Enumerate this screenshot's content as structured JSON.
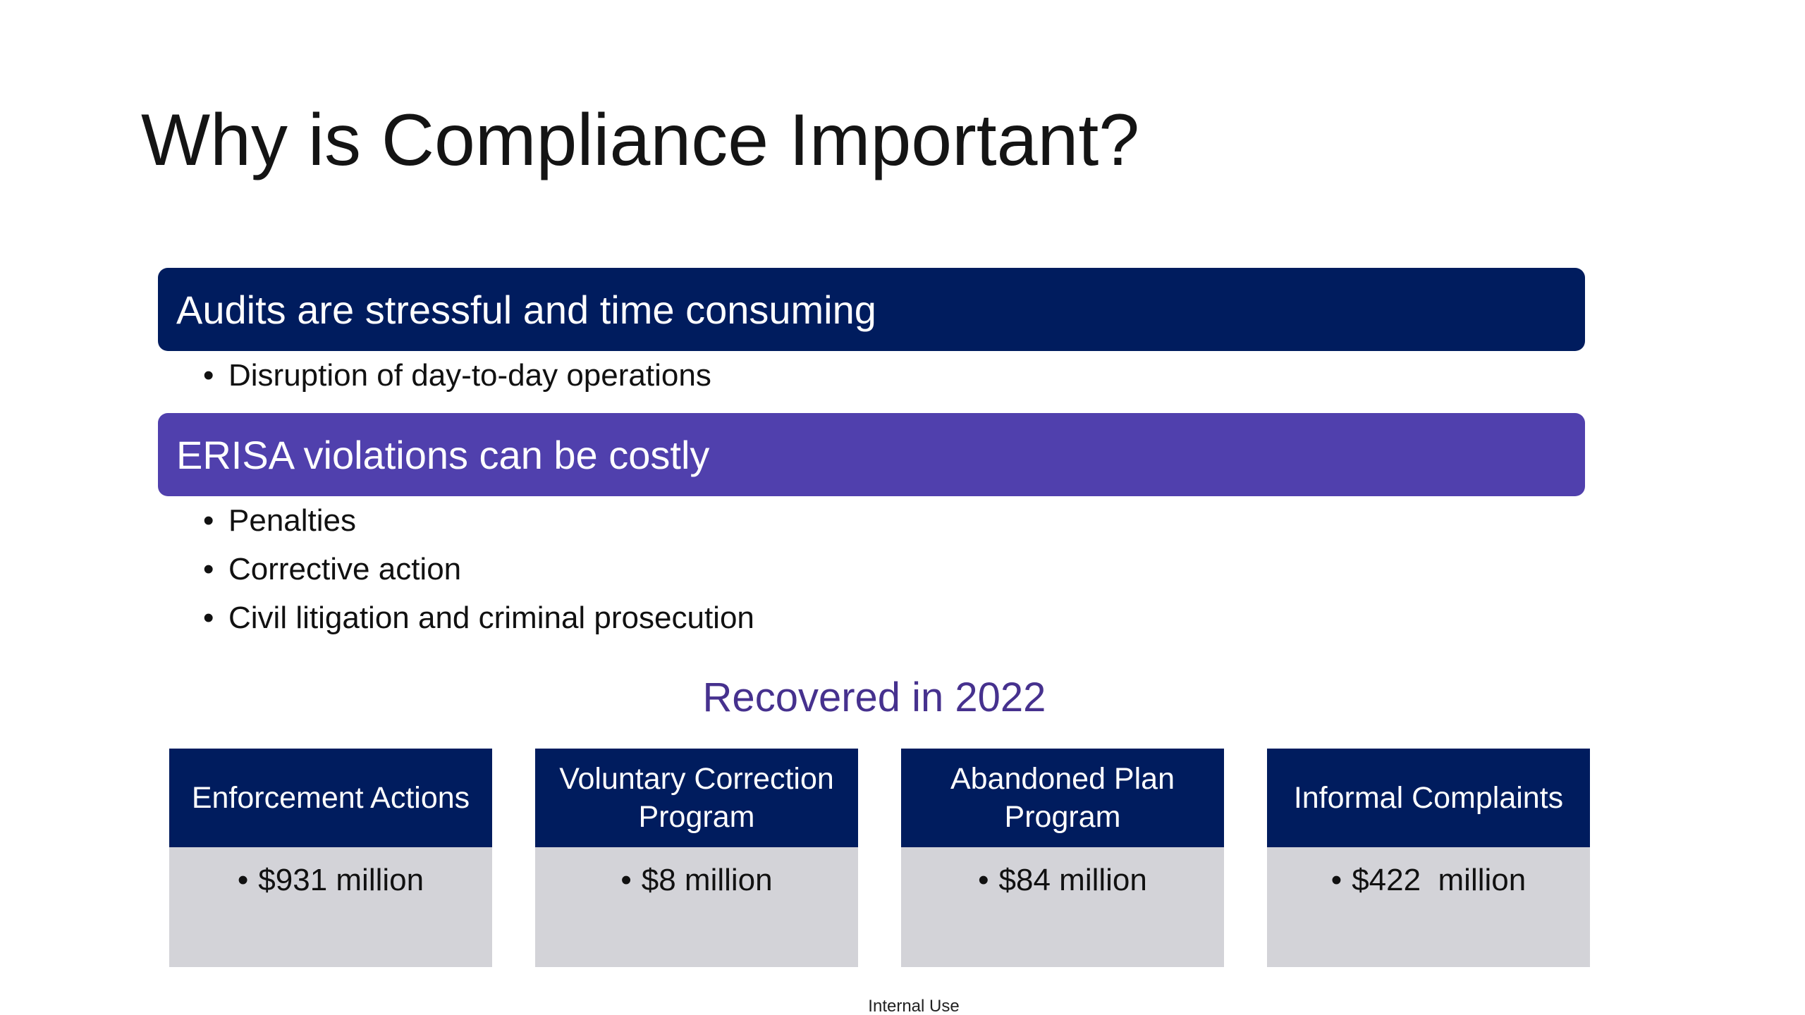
{
  "slide": {
    "title": "Why is Compliance Important?",
    "sections": [
      {
        "heading": "Audits are stressful and time consuming",
        "color": "#001c5e",
        "bullets": [
          "Disruption of day-to-day operations"
        ]
      },
      {
        "heading": "ERISA violations can be costly",
        "color": "#5040ad",
        "bullets": [
          "Penalties",
          "Corrective action",
          "Civil litigation and criminal prosecution"
        ]
      }
    ],
    "subtitle": "Recovered in 2022",
    "cards": [
      {
        "label": "Enforcement Actions",
        "value": "$931 million"
      },
      {
        "label": "Voluntary Correction Program",
        "value": "$8 million"
      },
      {
        "label": "Abandoned Plan Program",
        "value": "$84 million"
      },
      {
        "label": "Informal Complaints",
        "value": "$422  million"
      }
    ],
    "footer": "Internal Use"
  }
}
